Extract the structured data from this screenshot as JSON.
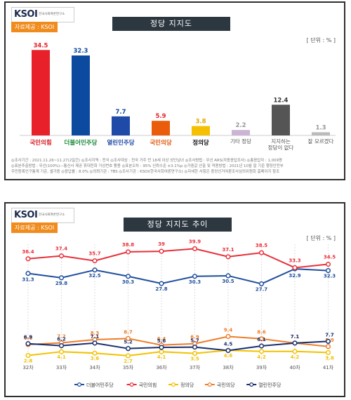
{
  "panel1": {
    "logo": "KSOI",
    "logo_sub": "한국사회여론연구소",
    "source_label": "자료제공 : KSOI",
    "title": "정당 지지도",
    "unit": "[ 단위 : % ]",
    "party_labels": [
      "국민의힘",
      "더불어민주당",
      "열린민주당",
      "국민의당",
      "정의당",
      "기타 정당",
      "지지하는 정당이 없다",
      "잘 모르겠다"
    ],
    "notes": [
      "◎조사기간 : 2021.11.26~11.27(2일간)  ◎조사지역 : 전국  ◎조사대상 : 전국 거주 만 18세 이상 성인남녀  ◎조사방법 : 무선 ARS(자동응답조사)  ◎총응답자 : 1,009명",
      "◎표본추출방법 : 무선(100%)—통신사 제공 휴대전화 가상번호 활용  ◎표본오차 : 95% 신뢰수준 ±3.1%p  ◎가중값 산출 및 적용방법 : 2021년 10월 말 기준 행정안전부",
      "주민등록인구통계 기준, 셀가중  ◎응답률 : 8.0%  ◎의뢰기관 : TBS  ◎조사기관 : KSOI(한국사회여론연구소)  ◎자세한 사항은 중앙선거여론조사심의위원회 홈페이지 참조"
    ]
  },
  "panel2": {
    "logo": "KSOI",
    "logo_sub": "한국사회여론연구소",
    "source_label": "자료제공 : KSOI",
    "title": "정당 지지도 추이",
    "unit": "[ 단위 : % ]"
  },
  "chart_data": [
    {
      "type": "bar",
      "title": "정당 지지도",
      "categories": [
        "국민의힘",
        "더불어민주당",
        "열린민주당",
        "국민의당",
        "정의당",
        "기타 정당",
        "지지하는 정당이 없다",
        "잘 모르겠다"
      ],
      "values": [
        34.5,
        32.3,
        7.7,
        5.9,
        3.8,
        2.2,
        12.4,
        1.3
      ],
      "colors": [
        "#e8202a",
        "#0b4a9f",
        "#1f4aa8",
        "#ea5b0c",
        "#f5c000",
        "#cbb4d4",
        "#555555",
        "#bbbbbb"
      ],
      "ylim": [
        0,
        40
      ],
      "grid": false
    },
    {
      "type": "line",
      "title": "정당 지지도 추이",
      "x": [
        "32차",
        "33차",
        "34차",
        "35차",
        "36차",
        "37차",
        "38차",
        "39차",
        "40차",
        "41차"
      ],
      "ylim": [
        0,
        45
      ],
      "legend": "bottom",
      "series": [
        {
          "name": "더불어민주당",
          "color": "#1f4e9c",
          "values": [
            31.3,
            29.8,
            32.5,
            30.3,
            27.8,
            30.3,
            30.5,
            27.7,
            32.9,
            32.3
          ]
        },
        {
          "name": "국민의힘",
          "color": "#e8303a",
          "values": [
            36.4,
            37.4,
            35.7,
            38.8,
            39.0,
            39.9,
            37.1,
            38.5,
            33.3,
            34.5
          ]
        },
        {
          "name": "정의당",
          "color": "#f2c200",
          "values": [
            2.8,
            4.1,
            3.6,
            2.7,
            4.1,
            3.5,
            4.6,
            4.2,
            4.2,
            3.8
          ]
        },
        {
          "name": "국민의당",
          "color": "#ee7d2a",
          "values": [
            6.6,
            7.2,
            8.3,
            8.7,
            6.4,
            6.9,
            9.4,
            8.6,
            7.1,
            5.9
          ]
        },
        {
          "name": "열린민주당",
          "color": "#1a2f6e",
          "values": [
            6.9,
            6.2,
            7.1,
            5.2,
            5.6,
            5.7,
            4.5,
            6.1,
            7.1,
            7.7
          ]
        }
      ]
    }
  ]
}
